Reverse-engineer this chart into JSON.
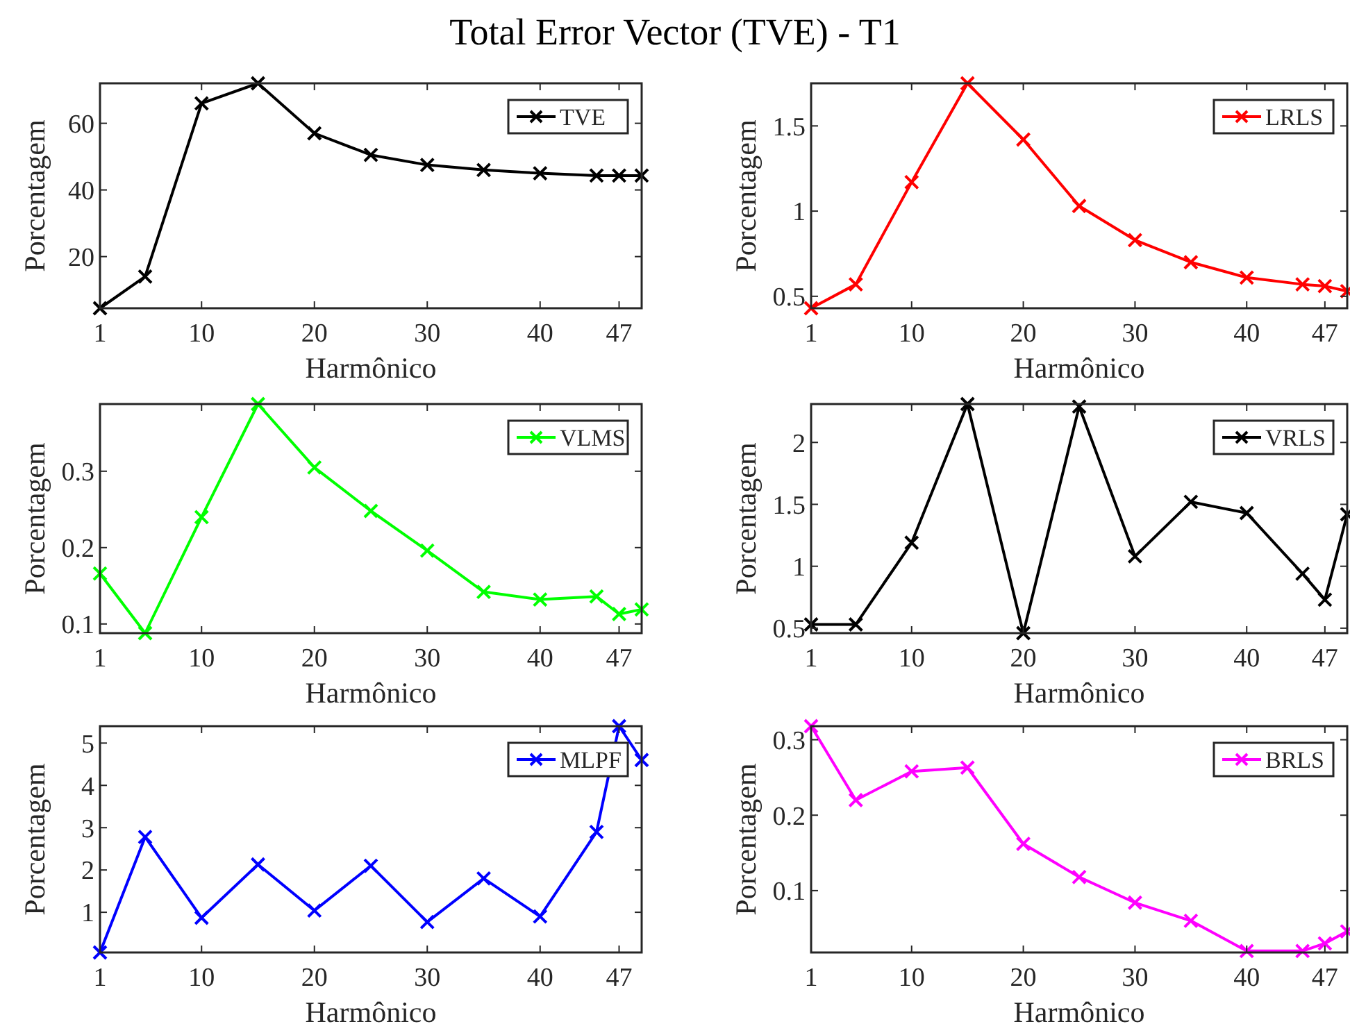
{
  "chart_data": [
    {
      "type": "line",
      "title": "Total Error Vector (TVE) - T1",
      "xlabel": "Harmônico",
      "ylabel": "Porcentagem",
      "x": [
        1,
        5,
        10,
        15,
        20,
        25,
        30,
        35,
        40,
        45,
        47,
        49
      ],
      "xlim": [
        1,
        49
      ],
      "xticks": [
        1,
        10,
        20,
        30,
        40,
        47
      ],
      "ylim": [
        4.5,
        72
      ],
      "yticks": [
        20,
        40,
        60
      ],
      "legend": "top right",
      "marker": "cross",
      "line_style": "solid",
      "series": [
        {
          "name": "TVE",
          "color": "#000000",
          "values": [
            4.5,
            14,
            66,
            72,
            57,
            50.5,
            47.5,
            46,
            45,
            44.3,
            44.3,
            44.3
          ]
        }
      ]
    },
    {
      "type": "line",
      "xlabel": "Harmônico",
      "ylabel": "Porcentagem",
      "x": [
        1,
        5,
        10,
        15,
        20,
        25,
        30,
        35,
        40,
        45,
        47,
        49
      ],
      "xlim": [
        1,
        49
      ],
      "xticks": [
        1,
        10,
        20,
        30,
        40,
        47
      ],
      "ylim": [
        0.43,
        1.75
      ],
      "yticks": [
        0.5,
        1,
        1.5
      ],
      "legend": "top right",
      "marker": "cross",
      "line_style": "solid",
      "series": [
        {
          "name": "LRLS",
          "color": "#ff0000",
          "values": [
            0.43,
            0.57,
            1.17,
            1.75,
            1.42,
            1.03,
            0.83,
            0.7,
            0.61,
            0.57,
            0.56,
            0.53
          ]
        }
      ]
    },
    {
      "type": "line",
      "xlabel": "Harmônico",
      "ylabel": "Porcentagem",
      "x": [
        1,
        5,
        10,
        15,
        20,
        25,
        30,
        35,
        40,
        45,
        47,
        49
      ],
      "xlim": [
        1,
        49
      ],
      "xticks": [
        1,
        10,
        20,
        30,
        40,
        47
      ],
      "ylim": [
        0.088,
        0.388
      ],
      "yticks": [
        0.1,
        0.2,
        0.3
      ],
      "legend": "top right",
      "marker": "cross",
      "line_style": "solid",
      "series": [
        {
          "name": "VLMS",
          "color": "#00ff00",
          "values": [
            0.166,
            0.088,
            0.24,
            0.388,
            0.305,
            0.248,
            0.196,
            0.142,
            0.132,
            0.136,
            0.113,
            0.119
          ]
        }
      ]
    },
    {
      "type": "line",
      "xlabel": "Harmônico",
      "ylabel": "Porcentagem",
      "x": [
        1,
        5,
        10,
        15,
        20,
        25,
        30,
        35,
        40,
        45,
        47,
        49
      ],
      "xlim": [
        1,
        49
      ],
      "xticks": [
        1,
        10,
        20,
        30,
        40,
        47
      ],
      "ylim": [
        0.46,
        2.31
      ],
      "yticks": [
        0.5,
        1,
        1.5,
        2
      ],
      "legend": "top right",
      "marker": "cross",
      "line_style": "solid",
      "series": [
        {
          "name": "VRLS",
          "color": "#000000",
          "values": [
            0.53,
            0.53,
            1.19,
            2.31,
            0.46,
            2.29,
            1.08,
            1.52,
            1.43,
            0.94,
            0.73,
            1.42
          ]
        }
      ]
    },
    {
      "type": "line",
      "xlabel": "Harmônico",
      "ylabel": "Porcentagem",
      "x": [
        1,
        5,
        10,
        15,
        20,
        25,
        30,
        35,
        40,
        45,
        47,
        49
      ],
      "xlim": [
        1,
        49
      ],
      "xticks": [
        1,
        10,
        20,
        30,
        40,
        47
      ],
      "ylim": [
        0.05,
        5.4
      ],
      "yticks": [
        1,
        2,
        3,
        4,
        5
      ],
      "legend": "top right",
      "marker": "cross",
      "line_style": "solid",
      "series": [
        {
          "name": "MLPF",
          "color": "#0000ff",
          "values": [
            0.05,
            2.78,
            0.87,
            2.13,
            1.04,
            2.1,
            0.77,
            1.8,
            0.9,
            2.9,
            5.4,
            4.6
          ]
        }
      ]
    },
    {
      "type": "line",
      "xlabel": "Harmônico",
      "ylabel": "Porcentagem",
      "x": [
        1,
        5,
        10,
        15,
        20,
        25,
        30,
        35,
        40,
        45,
        47,
        49
      ],
      "xlim": [
        1,
        49
      ],
      "xticks": [
        1,
        10,
        20,
        30,
        40,
        47
      ],
      "ylim": [
        0.018,
        0.318
      ],
      "yticks": [
        0.1,
        0.2,
        0.3
      ],
      "legend": "top right",
      "marker": "cross",
      "line_style": "solid",
      "series": [
        {
          "name": "BRLS",
          "color": "#ff00ff",
          "values": [
            0.318,
            0.22,
            0.258,
            0.263,
            0.162,
            0.118,
            0.084,
            0.06,
            0.02,
            0.02,
            0.03,
            0.046
          ]
        }
      ]
    }
  ]
}
